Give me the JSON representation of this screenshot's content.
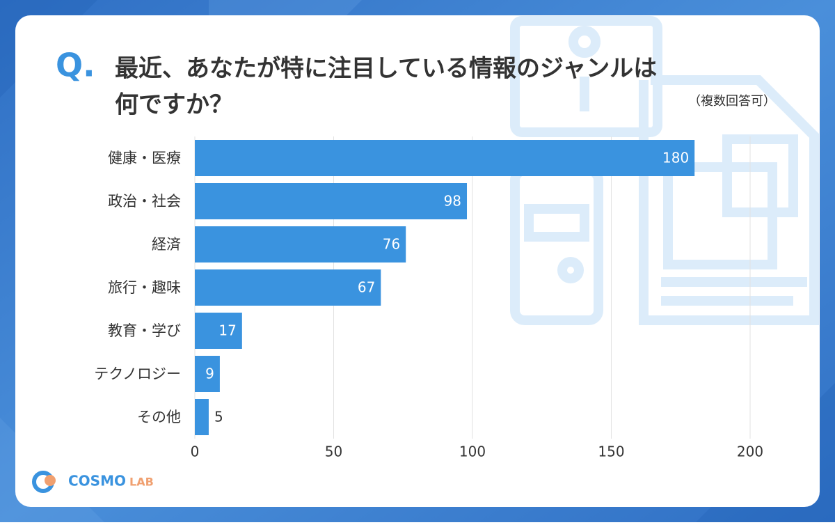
{
  "chart_data": {
    "type": "barh",
    "title_prefix": "Q.",
    "title_lines": [
      "最近、あなたが特に注目している情報のジャンルは",
      "何ですか？"
    ],
    "subtitle": "（複数回答可）",
    "categories": [
      "健康・医療",
      "政治・社会",
      "経済",
      "旅行・趣味",
      "教育・学び",
      "テクノロジー",
      "その他"
    ],
    "values": [
      180,
      98,
      76,
      67,
      17,
      9,
      5
    ],
    "color": "#3a93df",
    "xlim": [
      0,
      200
    ],
    "xticks": [
      0,
      50,
      100,
      150,
      200
    ],
    "grid": true
  },
  "logo": {
    "main": "COSMO",
    "sub": "LAB"
  }
}
